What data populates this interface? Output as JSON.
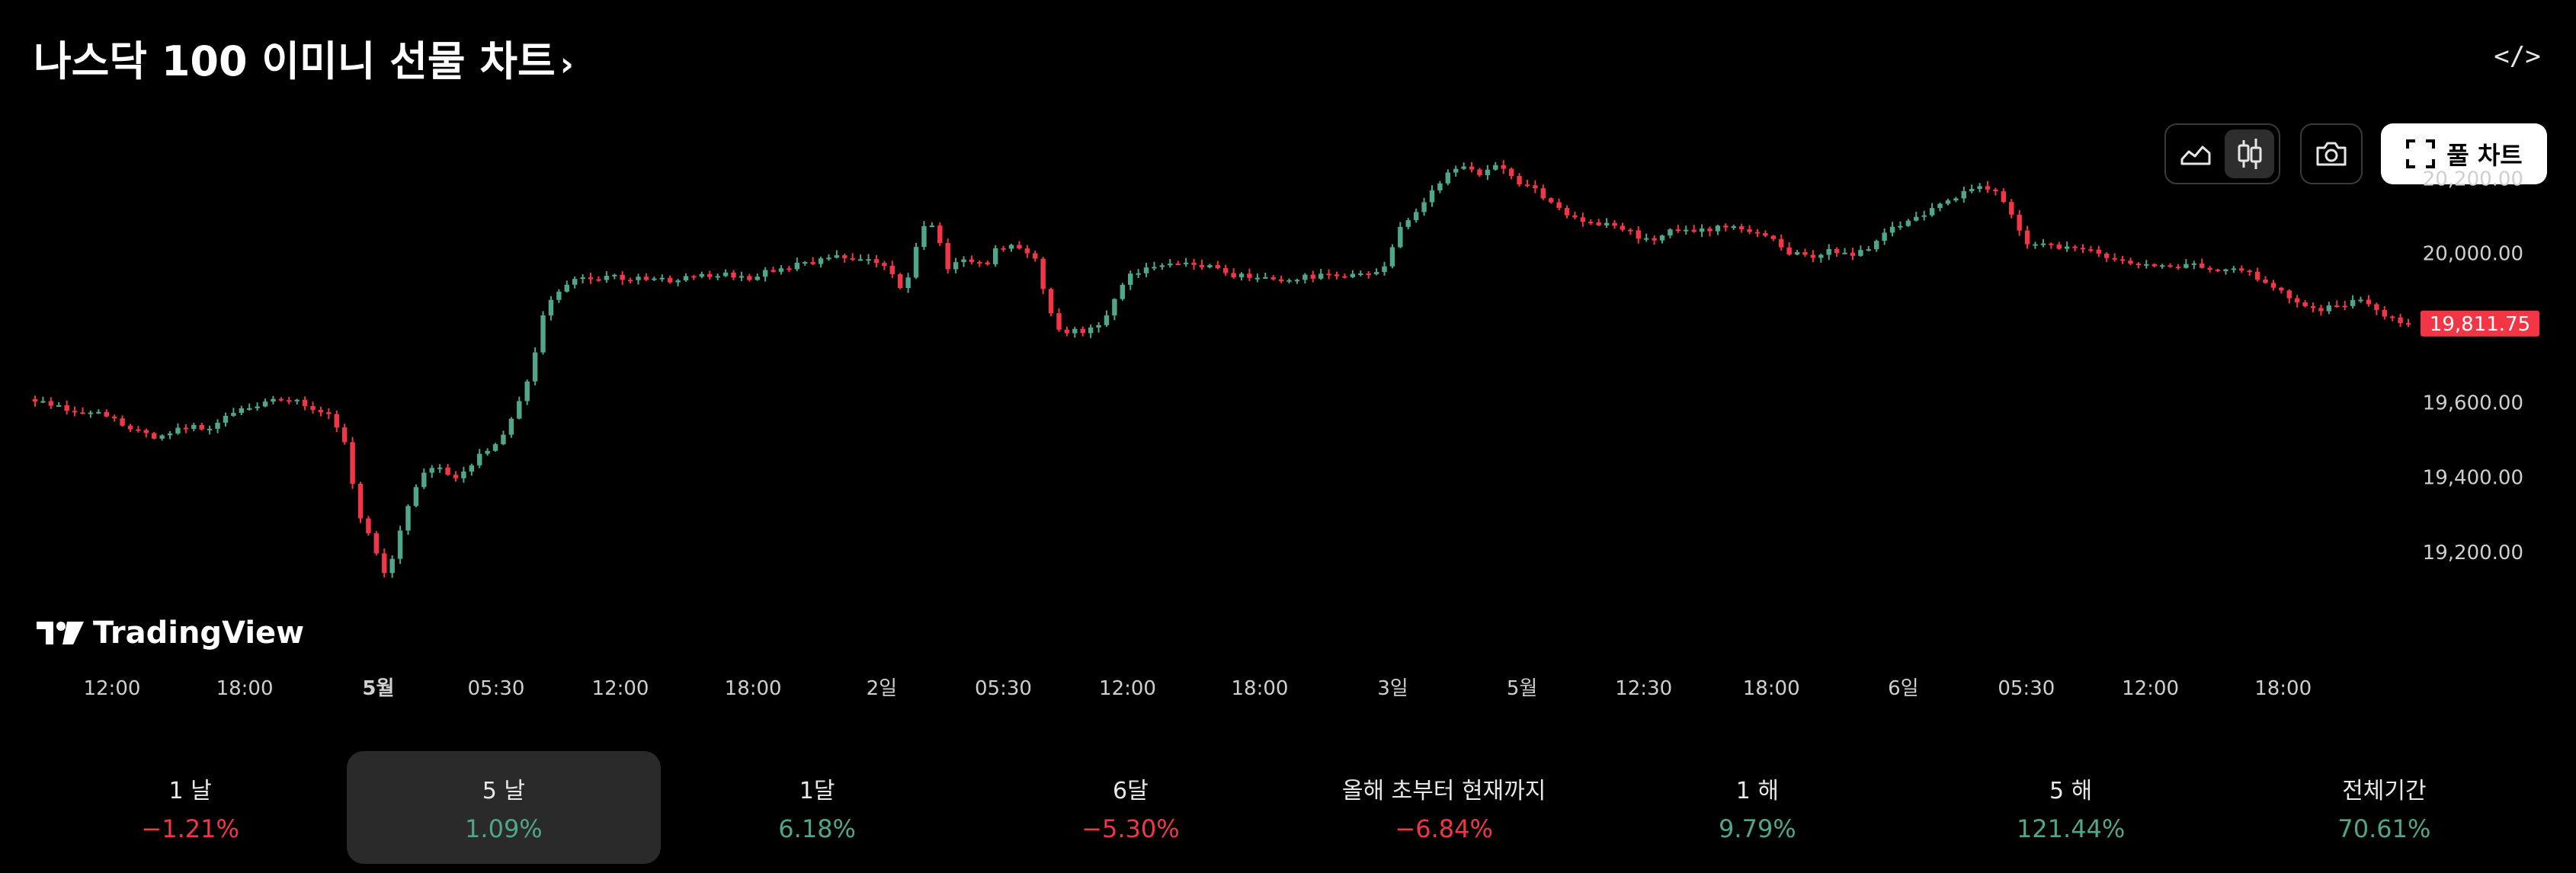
{
  "header": {
    "title": "나스닥 100 이미니 선물 차트",
    "title_chevron": "›",
    "embed_label": "</>"
  },
  "toolbar": {
    "area_icon": "area-chart-icon",
    "candle_icon": "candlestick-icon",
    "camera_icon": "camera-icon",
    "fullscreen_icon": "fullscreen-icon",
    "full_chart_label": "풀 차트"
  },
  "logo": {
    "text": "TradingView",
    "icon": "tradingview-logo-icon"
  },
  "colors": {
    "up": "#4fa68a",
    "down": "#f23645",
    "last_price_bg": "#f23645",
    "axis_text": "#cfcfcf",
    "background": "#000000"
  },
  "chart_data": {
    "type": "candlestick",
    "title": "",
    "ylim": [
      19100,
      20270
    ],
    "y_ticks": [
      "20,200.00",
      "20,000.00",
      "19,600.00",
      "19,400.00",
      "19,200.00"
    ],
    "y_tick_values": [
      20200,
      20000,
      19600,
      19400,
      19200
    ],
    "x_ticks": [
      "12:00",
      "18:00",
      "5월",
      "05:30",
      "12:00",
      "18:00",
      "2일",
      "05:30",
      "12:00",
      "18:00",
      "3일",
      "5월",
      "12:30",
      "18:00",
      "6일",
      "05:30",
      "12:00",
      "18:00"
    ],
    "x_tick_bold": [
      false,
      false,
      true,
      false,
      false,
      false,
      false,
      false,
      false,
      false,
      false,
      false,
      false,
      false,
      false,
      false,
      false,
      false
    ],
    "x_tick_pos": [
      0.0465,
      0.1016,
      0.1571,
      0.206,
      0.2576,
      0.3127,
      0.3661,
      0.4166,
      0.4682,
      0.5231,
      0.5783,
      0.632,
      0.6825,
      0.7355,
      0.7903,
      0.8414,
      0.8929,
      0.948
    ],
    "last_price": 19811.75,
    "last_price_label": "19,811.75",
    "anchors": [
      [
        0,
        19610
      ],
      [
        0.02,
        19580
      ],
      [
        0.035,
        19570
      ],
      [
        0.05,
        19540
      ],
      [
        0.065,
        19510
      ],
      [
        0.08,
        19530
      ],
      [
        0.095,
        19535
      ],
      [
        0.11,
        19580
      ],
      [
        0.125,
        19600
      ],
      [
        0.14,
        19610
      ],
      [
        0.15,
        19595
      ],
      [
        0.16,
        19570
      ],
      [
        0.165,
        19550
      ],
      [
        0.172,
        19480
      ],
      [
        0.177,
        19300
      ],
      [
        0.185,
        19230
      ],
      [
        0.193,
        19140
      ],
      [
        0.198,
        19200
      ],
      [
        0.205,
        19330
      ],
      [
        0.212,
        19400
      ],
      [
        0.222,
        19430
      ],
      [
        0.232,
        19400
      ],
      [
        0.242,
        19450
      ],
      [
        0.255,
        19490
      ],
      [
        0.262,
        19560
      ],
      [
        0.272,
        19680
      ],
      [
        0.28,
        19840
      ],
      [
        0.29,
        19920
      ],
      [
        0.3,
        19930
      ],
      [
        0.32,
        19935
      ],
      [
        0.35,
        19930
      ],
      [
        0.375,
        19945
      ],
      [
        0.39,
        19930
      ],
      [
        0.41,
        19960
      ],
      [
        0.44,
        19990
      ],
      [
        0.46,
        19990
      ],
      [
        0.47,
        19960
      ],
      [
        0.478,
        19890
      ],
      [
        0.483,
        20000
      ],
      [
        0.49,
        20080
      ],
      [
        0.496,
        20060
      ],
      [
        0.502,
        19960
      ],
      [
        0.512,
        19990
      ],
      [
        0.522,
        19960
      ],
      [
        0.53,
        20020
      ],
      [
        0.542,
        20010
      ],
      [
        0.55,
        19980
      ],
      [
        0.556,
        19880
      ],
      [
        0.562,
        19790
      ],
      [
        0.572,
        19790
      ],
      [
        0.585,
        19800
      ],
      [
        0.593,
        19870
      ],
      [
        0.6,
        19940
      ],
      [
        0.615,
        19960
      ],
      [
        0.63,
        19970
      ],
      [
        0.645,
        19965
      ],
      [
        0.66,
        19940
      ],
      [
        0.675,
        19935
      ],
      [
        0.69,
        19930
      ],
      [
        0.705,
        19940
      ],
      [
        0.72,
        19935
      ],
      [
        0.735,
        19945
      ],
      [
        0.742,
        19960
      ],
      [
        0.75,
        20060
      ],
      [
        0.76,
        20120
      ],
      [
        0.77,
        20180
      ],
      [
        0.782,
        20230
      ],
      [
        0.795,
        20210
      ],
      [
        0.805,
        20235
      ],
      [
        0.812,
        20200
      ],
      [
        0.825,
        20170
      ],
      [
        0.84,
        20110
      ],
      [
        0.855,
        20080
      ],
      [
        0.87,
        20070
      ],
      [
        0.88,
        20050
      ],
      [
        0.89,
        20030
      ],
      [
        0.9,
        20060
      ],
      [
        0.915,
        20060
      ],
      [
        0.93,
        20075
      ],
      [
        0.945,
        20060
      ],
      [
        0.955,
        20040
      ],
      [
        0.965,
        20000
      ],
      [
        0.975,
        19990
      ],
      [
        0.99,
        20010
      ],
      [
        1.0,
        19990
      ],
      [
        1.01,
        20020
      ],
      [
        1.02,
        20060
      ],
      [
        1.035,
        20100
      ],
      [
        1.05,
        20130
      ],
      [
        1.065,
        20170
      ],
      [
        1.075,
        20175
      ],
      [
        1.085,
        20120
      ],
      [
        1.095,
        20030
      ],
      [
        1.11,
        20020
      ],
      [
        1.125,
        20010
      ],
      [
        1.14,
        19990
      ],
      [
        1.155,
        19970
      ],
      [
        1.17,
        19960
      ],
      [
        1.185,
        19975
      ],
      [
        1.2,
        19950
      ],
      [
        1.215,
        19960
      ],
      [
        1.23,
        19910
      ],
      [
        1.24,
        19880
      ],
      [
        1.255,
        19850
      ],
      [
        1.27,
        19860
      ],
      [
        1.28,
        19880
      ],
      [
        1.292,
        19830
      ],
      [
        1.305,
        19812
      ]
    ]
  },
  "periods": [
    {
      "label": "1 날",
      "value": "−1.21%",
      "dir": "neg",
      "active": false
    },
    {
      "label": "5 날",
      "value": "1.09%",
      "dir": "pos",
      "active": true
    },
    {
      "label": "1달",
      "value": "6.18%",
      "dir": "pos",
      "active": false
    },
    {
      "label": "6달",
      "value": "−5.30%",
      "dir": "neg",
      "active": false
    },
    {
      "label": "올해 초부터 현재까지",
      "value": "−6.84%",
      "dir": "neg",
      "active": false
    },
    {
      "label": "1 해",
      "value": "9.79%",
      "dir": "pos",
      "active": false
    },
    {
      "label": "5 해",
      "value": "121.44%",
      "dir": "pos",
      "active": false
    },
    {
      "label": "전체기간",
      "value": "70.61%",
      "dir": "pos",
      "active": false
    }
  ]
}
